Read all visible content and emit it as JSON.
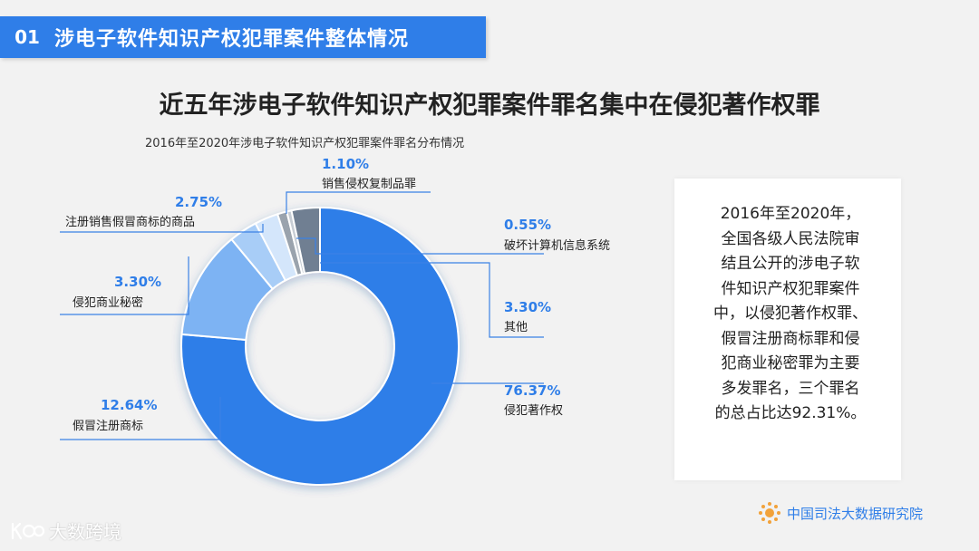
{
  "header": {
    "number": "01",
    "title": "涉电子软件知识产权犯罪案件整体情况"
  },
  "main_title": "近五年涉电子软件知识产权犯罪案件罪名集中在侵犯著作权罪",
  "chart_data": {
    "type": "pie",
    "subtype": "donut",
    "title": "2016年至2020年涉电子软件知识产权犯罪案件罪名分布情况",
    "slices": [
      {
        "label": "侵犯著作权",
        "value": 76.37,
        "display": "76.37%",
        "color": "#2f7ee8"
      },
      {
        "label": "假冒注册商标",
        "value": 12.64,
        "display": "12.64%",
        "color": "#7db3f3"
      },
      {
        "label": "侵犯商业秘密",
        "value": 3.3,
        "display": "3.30%",
        "color": "#a8cdf7"
      },
      {
        "label": "注册销售假冒商标的商品",
        "value": 2.75,
        "display": "2.75%",
        "color": "#d4e6fb"
      },
      {
        "label": "销售侵权复制品罪",
        "value": 1.1,
        "display": "1.10%",
        "color": "#9aa3ad"
      },
      {
        "label": "破坏计算机信息系统",
        "value": 0.55,
        "display": "0.55%",
        "color": "#c7cdd4"
      },
      {
        "label": "其他",
        "value": 3.3,
        "display": "3.30%",
        "color": "#6f7f92"
      }
    ]
  },
  "side_text": {
    "lines": [
      "2016年至2020年，",
      "全国各级人民法院审",
      "结且公开的涉电子软",
      "件知识产权犯罪案件",
      "中，以侵犯著作权罪、",
      "假冒注册商标罪和侵",
      "犯商业秘密罪为主要",
      "多发罪名，三个罪名",
      "的总占比达92.31%。"
    ]
  },
  "footer": {
    "org": "中国司法大数据研究院",
    "watermark": "大数跨境"
  },
  "colors": {
    "accent": "#2f7ee8",
    "background": "#f2f2f2"
  }
}
